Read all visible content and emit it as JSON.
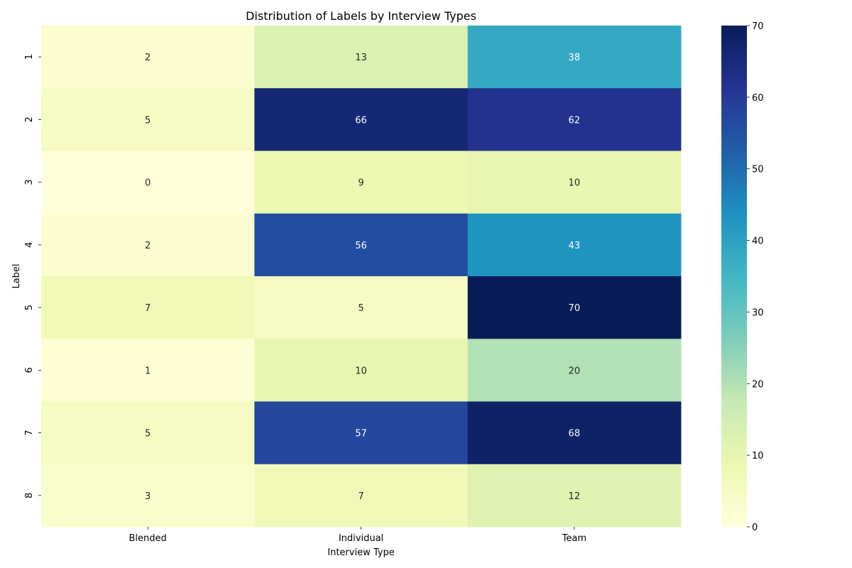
{
  "chart_data": {
    "type": "heatmap",
    "title": "Distribution of Labels by Interview Types",
    "xlabel": "Interview Type",
    "ylabel": "Label",
    "x_categories": [
      "Blended",
      "Individual",
      "Team"
    ],
    "y_categories": [
      "1",
      "2",
      "3",
      "4",
      "5",
      "6",
      "7",
      "8"
    ],
    "values": [
      [
        2,
        13,
        38
      ],
      [
        5,
        66,
        62
      ],
      [
        0,
        9,
        10
      ],
      [
        2,
        56,
        43
      ],
      [
        7,
        5,
        70
      ],
      [
        1,
        10,
        20
      ],
      [
        5,
        57,
        68
      ],
      [
        3,
        7,
        12
      ]
    ],
    "colorscale": "YlGnBu",
    "vmin": 0,
    "vmax": 70,
    "colorbar_ticks": [
      0,
      10,
      20,
      30,
      40,
      50,
      60,
      70
    ],
    "annotations": true
  }
}
